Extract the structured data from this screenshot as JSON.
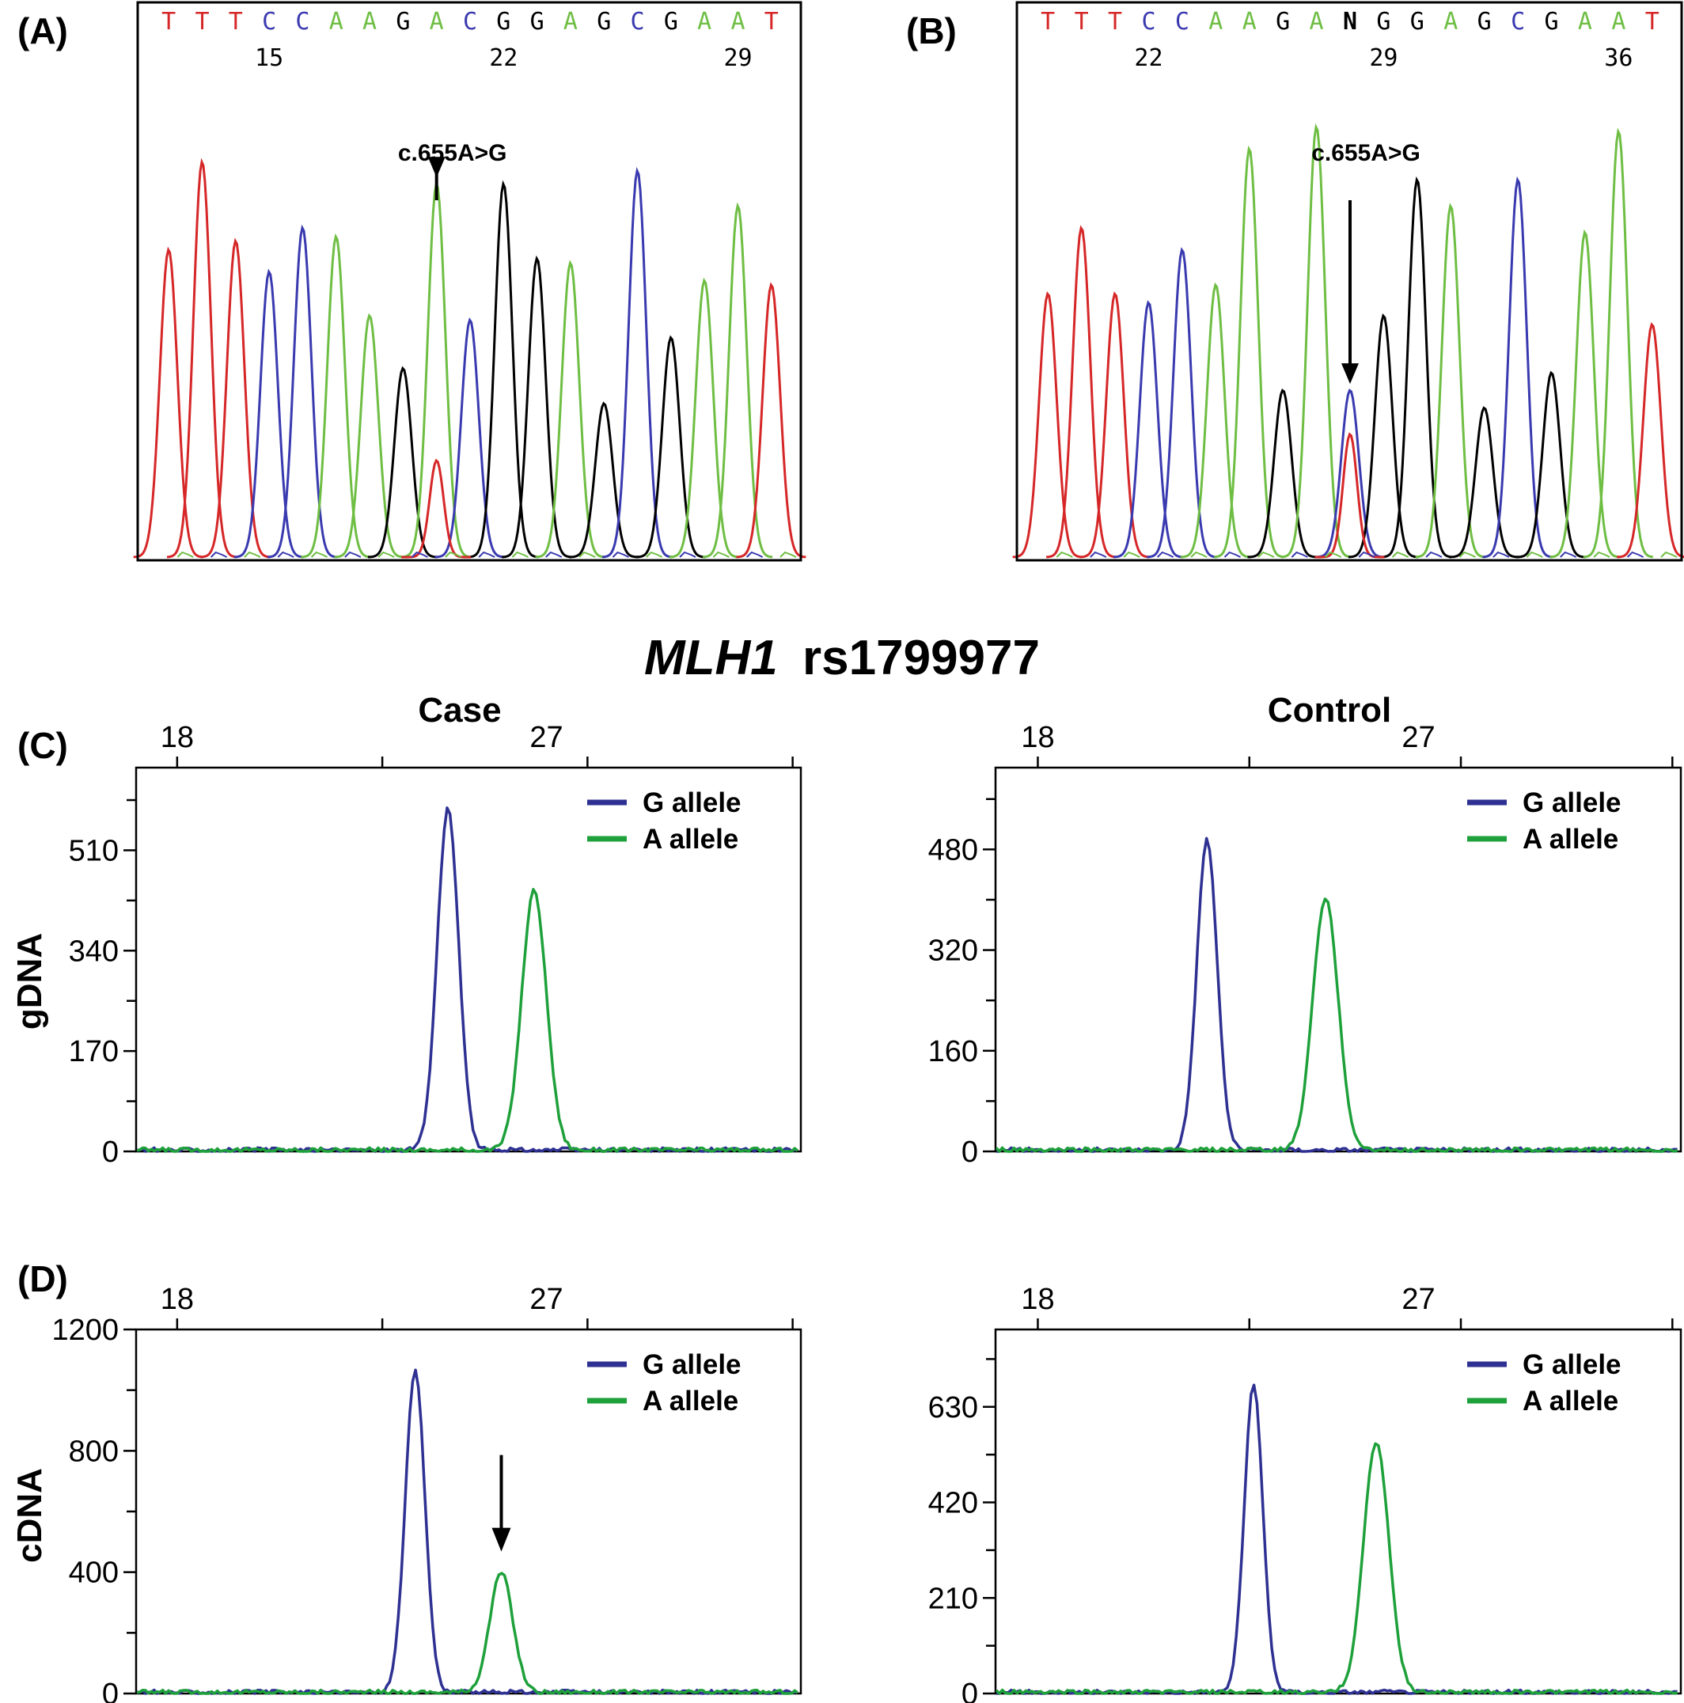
{
  "figure": {
    "panel_labels": [
      "(A)",
      "(B)",
      "(C)",
      "(D)"
    ],
    "title_gene": "MLH1",
    "title_snp": "rs1799977",
    "column_titles": [
      "Case",
      "Control"
    ],
    "row_labels": [
      "gDNA",
      "cDNA"
    ]
  },
  "colors": {
    "T": "#d62728",
    "C": "#3a3ab0",
    "A": "#6fbe44",
    "G": "#000000",
    "g_allele": "#2e3192",
    "a_allele": "#1ea03a",
    "frame": "#000000"
  },
  "chart_data": [
    {
      "panel": "(A)",
      "type": "line",
      "subtype": "sanger-chromatogram",
      "sequence": [
        "T",
        "T",
        "T",
        "C",
        "C",
        "A",
        "A",
        "G",
        "A",
        "C",
        "G",
        "G",
        "A",
        "G",
        "C",
        "G",
        "A",
        "A",
        "T"
      ],
      "position_labels": [
        "15",
        "22",
        "29"
      ],
      "annotation": "c.655A>G",
      "peak_heights_relative": [
        0.7,
        0.9,
        0.72,
        0.65,
        0.75,
        0.73,
        0.55,
        0.43,
        0.85,
        0.54,
        0.85,
        0.68,
        0.67,
        0.35,
        0.88,
        0.5,
        0.63,
        0.8,
        0.62
      ],
      "minor_peak": {
        "base": "T",
        "at_index": 8,
        "height_relative": 0.22
      }
    },
    {
      "panel": "(B)",
      "type": "line",
      "subtype": "sanger-chromatogram",
      "sequence": [
        "T",
        "T",
        "T",
        "C",
        "C",
        "A",
        "A",
        "G",
        "A",
        "N",
        "G",
        "G",
        "A",
        "G",
        "C",
        "G",
        "A",
        "A",
        "T"
      ],
      "position_labels": [
        "22",
        "29",
        "36"
      ],
      "annotation": "c.655A>G",
      "peak_heights_relative": [
        0.6,
        0.75,
        0.6,
        0.58,
        0.7,
        0.62,
        0.93,
        0.38,
        0.98,
        0.38,
        0.55,
        0.86,
        0.8,
        0.34,
        0.86,
        0.42,
        0.74,
        0.97,
        0.53
      ],
      "minor_peak": {
        "base": "T",
        "at_index": 9,
        "height_relative": 0.28
      }
    },
    {
      "panel": "(C)",
      "column": "Case",
      "row": "gDNA",
      "type": "line",
      "x_ticks": [
        "18",
        "27"
      ],
      "x_tick_values": [
        18,
        27
      ],
      "xlim": [
        17,
        33.2
      ],
      "y_ticks": [
        "0",
        "170",
        "340",
        "510"
      ],
      "y_tick_values": [
        0,
        170,
        340,
        510
      ],
      "ylim": [
        0,
        650
      ],
      "series": [
        {
          "name": "G allele",
          "peak_x": 24.6,
          "peak_height": 580,
          "width": 0.26
        },
        {
          "name": "A allele",
          "peak_x": 26.7,
          "peak_height": 440,
          "width": 0.3
        }
      ],
      "arrow_at_x": null
    },
    {
      "panel": "(C)",
      "column": "Control",
      "row": "gDNA",
      "type": "line",
      "x_ticks": [
        "18",
        "27"
      ],
      "x_tick_values": [
        18,
        27
      ],
      "xlim": [
        17,
        33.2
      ],
      "y_ticks": [
        "0",
        "160",
        "320",
        "480"
      ],
      "y_tick_values": [
        0,
        160,
        320,
        480
      ],
      "ylim": [
        0,
        610
      ],
      "series": [
        {
          "name": "G allele",
          "peak_x": 22.0,
          "peak_height": 495,
          "width": 0.24
        },
        {
          "name": "A allele",
          "peak_x": 24.8,
          "peak_height": 400,
          "width": 0.3
        }
      ],
      "arrow_at_x": null
    },
    {
      "panel": "(D)",
      "column": "Case",
      "row": "cDNA",
      "type": "line",
      "x_ticks": [
        "18",
        "27"
      ],
      "x_tick_values": [
        18,
        27
      ],
      "xlim": [
        17,
        33.2
      ],
      "y_ticks": [
        "0",
        "400",
        "800",
        "1200"
      ],
      "y_tick_values": [
        0,
        400,
        800,
        1200
      ],
      "ylim": [
        0,
        1200
      ],
      "series": [
        {
          "name": "G allele",
          "peak_x": 23.8,
          "peak_height": 1060,
          "width": 0.24
        },
        {
          "name": "A allele",
          "peak_x": 25.9,
          "peak_height": 395,
          "width": 0.28
        }
      ],
      "arrow_at_x": 25.9
    },
    {
      "panel": "(D)",
      "column": "Control",
      "row": "cDNA",
      "type": "line",
      "x_ticks": [
        "18",
        "27"
      ],
      "x_tick_values": [
        18,
        27
      ],
      "xlim": [
        17,
        33.2
      ],
      "y_ticks": [
        "0",
        "210",
        "420",
        "630"
      ],
      "y_tick_values": [
        0,
        210,
        420,
        630
      ],
      "ylim": [
        0,
        800
      ],
      "series": [
        {
          "name": "G allele",
          "peak_x": 23.1,
          "peak_height": 675,
          "width": 0.22
        },
        {
          "name": "A allele",
          "peak_x": 26.0,
          "peak_height": 550,
          "width": 0.3
        }
      ],
      "arrow_at_x": null
    }
  ]
}
